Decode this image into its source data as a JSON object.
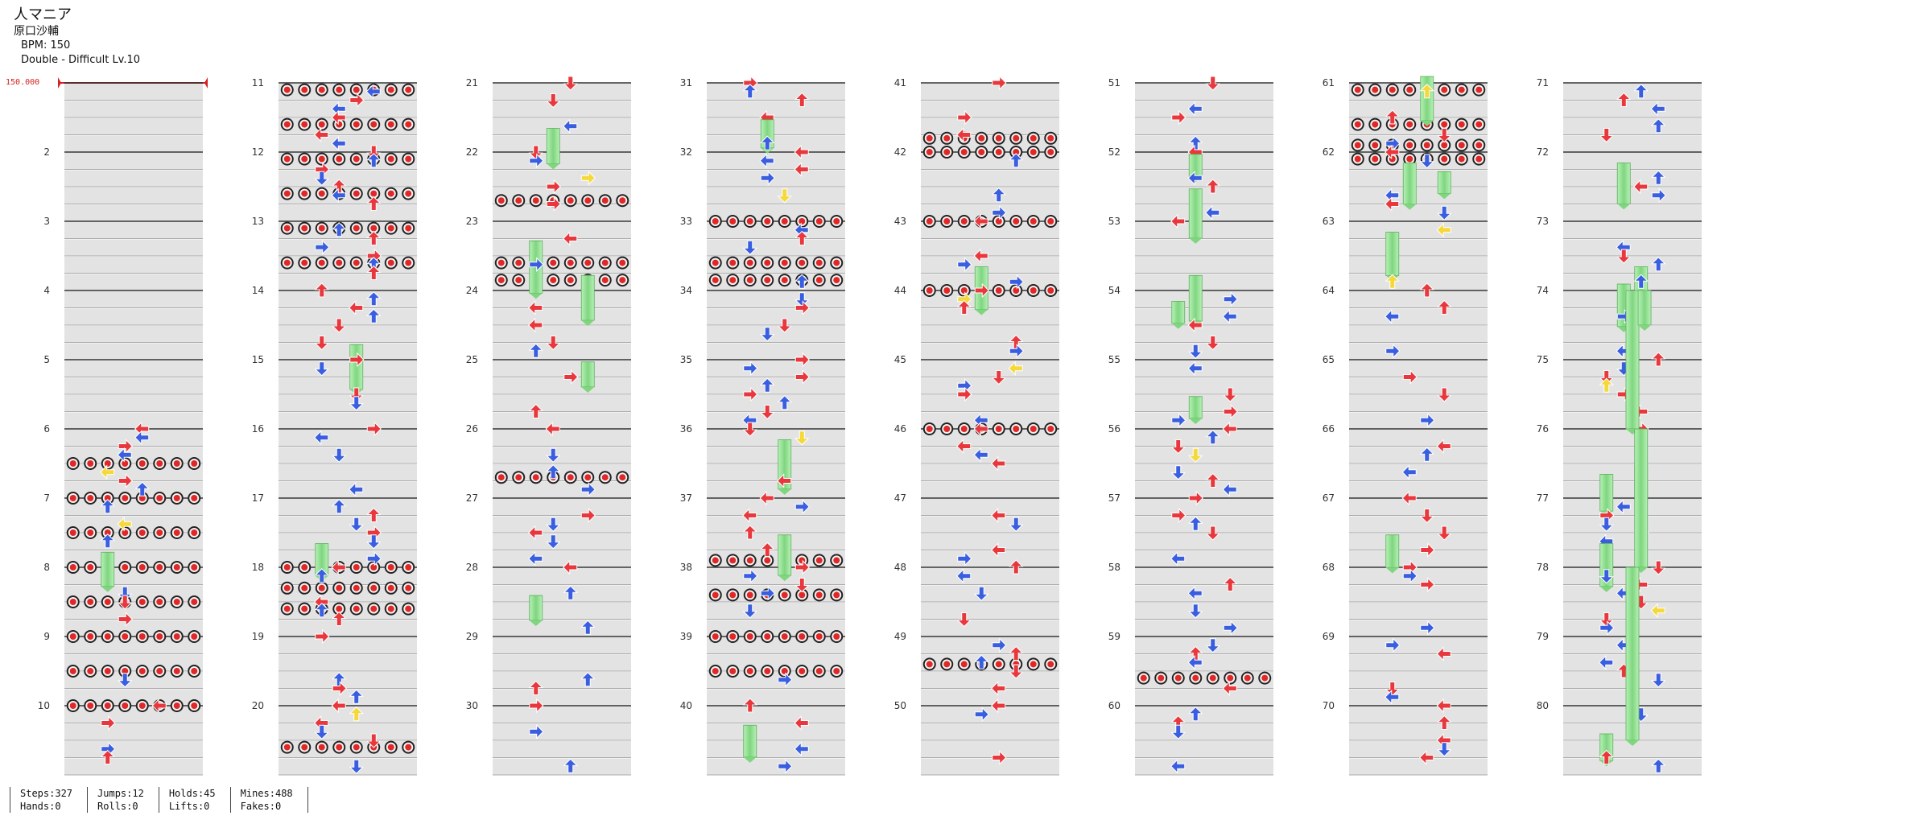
{
  "song": {
    "title": "人マニア",
    "artist": "原口沙輔",
    "bpm_text": "BPM: 150",
    "difficulty_text": "Double - Difficult  Lv.10"
  },
  "bpm_marker": {
    "label": "150.000"
  },
  "measures": {
    "first": 1,
    "last": 80,
    "per_column": 10,
    "column_count": 8,
    "labeled_start": 2
  },
  "stats": {
    "steps": "Steps:327",
    "hands": "Hands:0",
    "jumps": "Jumps:12",
    "rolls": "Rolls:0",
    "holds": "Holds:45",
    "lifts": "Lifts:0",
    "mines": "Mines:488",
    "fakes": "Fakes:0"
  },
  "colors": {
    "quarter_note": "#e8383d",
    "eighth_note": "#3a5ee0",
    "sixteenth_note": "#f5d93a",
    "hold_body": "#8fe08f",
    "stripe": "#e3e3e3",
    "beat_line": "#333333",
    "bpm_marker": "#d42020"
  },
  "notes_description_icons": [
    "arrow-left-icon",
    "arrow-down-icon",
    "arrow-up-icon",
    "arrow-right-icon",
    "mine-icon",
    "hold-note-icon"
  ]
}
